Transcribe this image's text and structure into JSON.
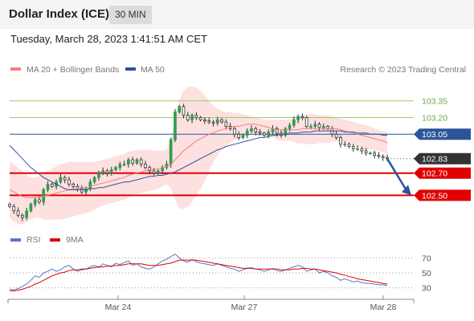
{
  "header": {
    "title": "Dollar Index (ICE)",
    "interval": "30 MIN"
  },
  "timestamp": "Tuesday, March 28, 2023 1:41:51 AM CET",
  "copyright": "Research © 2023 Trading Central",
  "colors": {
    "bollinger": "#f08080",
    "ma50": "#2a5599",
    "resistance": "#9ccc65",
    "support": "#e00000",
    "pivot": "#2a5599",
    "last": "#333333",
    "rsi": "#5577cc",
    "rsi_ma": "#e00000",
    "arrow": "#2a5599"
  },
  "chart_data": [
    {
      "type": "candlestick",
      "legend": [
        {
          "name": "MA 20 + Bollinger Bands",
          "color": "#f08080"
        },
        {
          "name": "MA 50",
          "color": "#2a5599"
        }
      ],
      "x_labels": [
        "Mar 24",
        "Mar 27",
        "Mar 28"
      ],
      "ylim": [
        102.25,
        103.55
      ],
      "levels": [
        {
          "label": "103.35",
          "value": 103.35,
          "kind": "resistance"
        },
        {
          "label": "103.20",
          "value": 103.2,
          "kind": "resistance"
        },
        {
          "label": "103.05",
          "value": 103.05,
          "kind": "pivot"
        },
        {
          "label": "102.83",
          "value": 102.83,
          "kind": "last"
        },
        {
          "label": "102.70",
          "value": 102.7,
          "kind": "support"
        },
        {
          "label": "102.50",
          "value": 102.5,
          "kind": "support"
        }
      ],
      "forecast": {
        "from": 102.83,
        "to": 102.5,
        "direction": "down"
      },
      "close": [
        102.4,
        102.36,
        102.32,
        102.3,
        102.36,
        102.42,
        102.46,
        102.44,
        102.55,
        102.6,
        102.58,
        102.62,
        102.66,
        102.64,
        102.6,
        102.58,
        102.56,
        102.53,
        102.56,
        102.62,
        102.66,
        102.7,
        102.72,
        102.7,
        102.73,
        102.75,
        102.78,
        102.78,
        102.82,
        102.79,
        102.82,
        102.78,
        102.75,
        102.72,
        102.7,
        102.72,
        102.75,
        102.78,
        103.0,
        103.25,
        103.3,
        103.22,
        103.18,
        103.22,
        103.2,
        103.18,
        103.17,
        103.16,
        103.15,
        103.18,
        103.16,
        103.12,
        103.1,
        103.05,
        103.02,
        103.04,
        103.08,
        103.1,
        103.07,
        103.06,
        103.04,
        103.07,
        103.1,
        103.06,
        103.04,
        103.1,
        103.13,
        103.18,
        103.21,
        103.2,
        103.12,
        103.12,
        103.14,
        103.11,
        103.12,
        103.1,
        103.05,
        103.02,
        102.96,
        102.96,
        102.94,
        102.92,
        102.92,
        102.9,
        102.88,
        102.88,
        102.86,
        102.85,
        102.84,
        102.83
      ],
      "ma20": [
        102.55,
        102.53,
        102.51,
        102.49,
        102.48,
        102.48,
        102.48,
        102.48,
        102.49,
        102.5,
        102.51,
        102.52,
        102.53,
        102.54,
        102.55,
        102.56,
        102.56,
        102.57,
        102.57,
        102.58,
        102.59,
        102.6,
        102.61,
        102.62,
        102.63,
        102.64,
        102.65,
        102.66,
        102.68,
        102.69,
        102.7,
        102.71,
        102.72,
        102.73,
        102.73,
        102.74,
        102.75,
        102.76,
        102.78,
        102.82,
        102.86,
        102.9,
        102.93,
        102.96,
        102.99,
        103.01,
        103.03,
        103.05,
        103.06,
        103.08,
        103.09,
        103.1,
        103.11,
        103.12,
        103.12,
        103.13,
        103.14,
        103.14,
        103.14,
        103.13,
        103.12,
        103.11,
        103.1,
        103.09,
        103.09,
        103.09,
        103.09,
        103.09,
        103.09,
        103.1,
        103.1,
        103.1,
        103.1,
        103.1,
        103.1,
        103.1,
        103.1,
        103.1,
        103.09,
        103.08,
        103.07,
        103.06,
        103.05,
        103.04,
        103.03,
        103.02,
        103.01,
        103.0,
        102.99,
        102.97
      ],
      "bb_upper": [
        102.8,
        102.78,
        102.75,
        102.72,
        102.68,
        102.66,
        102.66,
        102.67,
        102.7,
        102.72,
        102.74,
        102.76,
        102.78,
        102.79,
        102.8,
        102.8,
        102.8,
        102.8,
        102.8,
        102.8,
        102.8,
        102.81,
        102.82,
        102.83,
        102.84,
        102.85,
        102.86,
        102.87,
        102.89,
        102.9,
        102.91,
        102.91,
        102.91,
        102.91,
        102.9,
        102.9,
        102.9,
        102.91,
        103.0,
        103.2,
        103.36,
        103.44,
        103.48,
        103.48,
        103.47,
        103.44,
        103.4,
        103.35,
        103.31,
        103.28,
        103.26,
        103.25,
        103.25,
        103.24,
        103.24,
        103.23,
        103.22,
        103.21,
        103.2,
        103.19,
        103.18,
        103.18,
        103.18,
        103.18,
        103.18,
        103.18,
        103.18,
        103.19,
        103.21,
        103.22,
        103.23,
        103.23,
        103.23,
        103.22,
        103.22,
        103.22,
        103.21,
        103.2,
        103.19,
        103.18,
        103.17,
        103.16,
        103.15,
        103.14,
        103.13,
        103.12,
        103.1,
        103.09,
        103.08,
        103.07
      ],
      "bb_lower": [
        102.3,
        102.26,
        102.24,
        102.24,
        102.26,
        102.28,
        102.3,
        102.3,
        102.28,
        102.28,
        102.28,
        102.28,
        102.28,
        102.29,
        102.3,
        102.31,
        102.32,
        102.33,
        102.34,
        102.35,
        102.37,
        102.39,
        102.41,
        102.42,
        102.43,
        102.44,
        102.45,
        102.46,
        102.48,
        102.5,
        102.51,
        102.52,
        102.53,
        102.54,
        102.55,
        102.56,
        102.58,
        102.6,
        102.56,
        102.46,
        102.38,
        102.38,
        102.4,
        102.44,
        102.5,
        102.56,
        102.63,
        102.72,
        102.8,
        102.86,
        102.91,
        102.95,
        102.97,
        103.0,
        103.0,
        103.02,
        103.04,
        103.05,
        103.06,
        103.05,
        103.04,
        103.03,
        103.02,
        103.0,
        102.99,
        102.99,
        102.99,
        102.98,
        102.96,
        102.97,
        102.96,
        102.96,
        102.96,
        102.97,
        102.97,
        102.97,
        102.98,
        102.99,
        102.98,
        102.97,
        102.96,
        102.95,
        102.94,
        102.93,
        102.92,
        102.91,
        102.91,
        102.9,
        102.89,
        102.86
      ],
      "ma50": [
        102.95,
        102.91,
        102.87,
        102.83,
        102.79,
        102.75,
        102.72,
        102.69,
        102.66,
        102.64,
        102.62,
        102.6,
        102.58,
        102.56,
        102.55,
        102.55,
        102.55,
        102.55,
        102.55,
        102.56,
        102.56,
        102.57,
        102.57,
        102.58,
        102.59,
        102.6,
        102.61,
        102.62,
        102.62,
        102.63,
        102.64,
        102.65,
        102.66,
        102.67,
        102.67,
        102.68,
        102.68,
        102.69,
        102.7,
        102.71,
        102.73,
        102.75,
        102.77,
        102.79,
        102.81,
        102.83,
        102.85,
        102.87,
        102.89,
        102.91,
        102.92,
        102.94,
        102.95,
        102.96,
        102.97,
        102.98,
        102.99,
        103.0,
        103.01,
        103.02,
        103.02,
        103.03,
        103.04,
        103.04,
        103.05,
        103.05,
        103.06,
        103.06,
        103.06,
        103.07,
        103.07,
        103.07,
        103.08,
        103.08,
        103.08,
        103.08,
        103.08,
        103.08,
        103.08,
        103.07,
        103.07,
        103.07,
        103.06,
        103.06,
        103.06,
        103.05,
        103.05,
        103.05,
        103.04,
        103.04
      ]
    },
    {
      "type": "line",
      "legend": [
        {
          "name": "RSI",
          "color": "#5577cc"
        },
        {
          "name": "9MA",
          "color": "#e00000"
        }
      ],
      "y_ticks": [
        "70",
        "50",
        "30"
      ],
      "ylim": [
        20,
        80
      ],
      "rsi": [
        28,
        27,
        29,
        32,
        35,
        40,
        46,
        44,
        50,
        52,
        55,
        52,
        54,
        58,
        60,
        55,
        52,
        54,
        55,
        58,
        60,
        57,
        62,
        60,
        58,
        63,
        61,
        64,
        66,
        60,
        62,
        58,
        56,
        55,
        58,
        62,
        66,
        68,
        72,
        75,
        70,
        66,
        64,
        68,
        65,
        63,
        62,
        61,
        60,
        62,
        60,
        58,
        56,
        55,
        52,
        54,
        56,
        57,
        55,
        54,
        52,
        54,
        56,
        53,
        52,
        54,
        56,
        58,
        60,
        58,
        52,
        54,
        55,
        50,
        52,
        50,
        46,
        44,
        40,
        42,
        40,
        38,
        39,
        37,
        36,
        36,
        35,
        34,
        34,
        33
      ],
      "rsi_ma": [
        26,
        26,
        27,
        28,
        30,
        32,
        35,
        37,
        40,
        43,
        46,
        48,
        50,
        51,
        53,
        54,
        54,
        55,
        55,
        56,
        57,
        58,
        58,
        59,
        59,
        60,
        60,
        61,
        62,
        62,
        62,
        62,
        61,
        60,
        60,
        60,
        61,
        62,
        63,
        65,
        67,
        67,
        67,
        67,
        67,
        66,
        65,
        64,
        63,
        62,
        61,
        60,
        59,
        58,
        57,
        56,
        56,
        56,
        55,
        55,
        55,
        55,
        55,
        55,
        54,
        54,
        54,
        55,
        55,
        56,
        56,
        55,
        55,
        54,
        53,
        52,
        51,
        50,
        48,
        47,
        45,
        44,
        42,
        41,
        40,
        39,
        38,
        37,
        36,
        35
      ]
    }
  ]
}
